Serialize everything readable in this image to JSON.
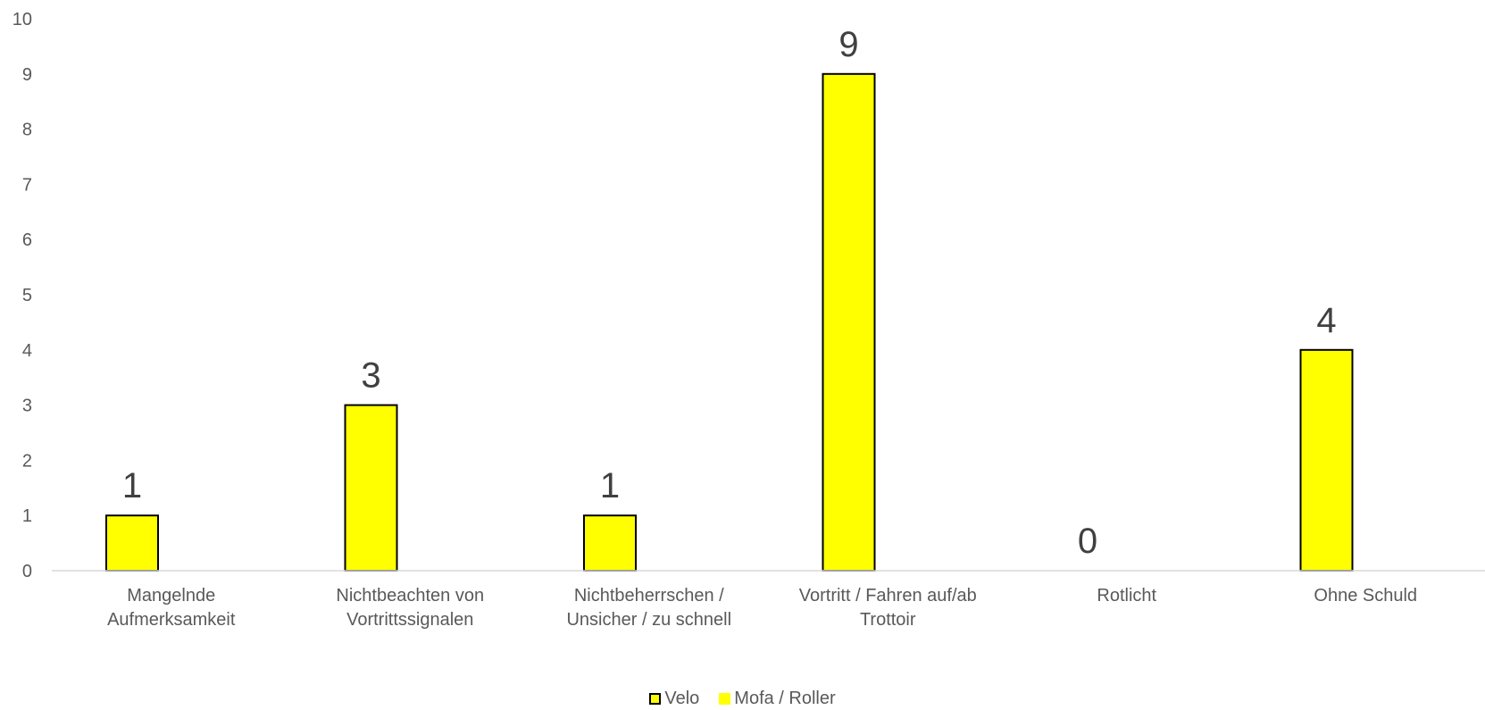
{
  "chart_data": {
    "type": "bar",
    "title": "",
    "xlabel": "",
    "ylabel": "",
    "ylim": [
      0,
      10
    ],
    "yticks": [
      "0",
      "1",
      "2",
      "3",
      "4",
      "5",
      "6",
      "7",
      "8",
      "9",
      "10"
    ],
    "grid": false,
    "legend_position": "bottom",
    "categories": [
      [
        "Mangelnde",
        "Aufmerksamkeit"
      ],
      [
        "Nichtbeachten von",
        "Vortrittssignalen"
      ],
      [
        "Nichtbeherrschen /",
        "Unsicher / zu schnell"
      ],
      [
        "Vortritt / Fahren auf/ab",
        "Trottoir"
      ],
      [
        "Rotlicht"
      ],
      [
        "Ohne Schuld"
      ]
    ],
    "series": [
      {
        "name": "Velo",
        "color": "#ffff00",
        "border": "#000000",
        "values": [
          1,
          3,
          1,
          9,
          0,
          4
        ],
        "data_labels": [
          "1",
          "3",
          "1",
          "9",
          "0",
          "4"
        ]
      },
      {
        "name": "Mofa / Roller",
        "color": "#ffff00",
        "values": [
          0,
          0,
          0,
          0,
          0,
          0
        ]
      }
    ],
    "axis_color": "#d9d9d9"
  }
}
